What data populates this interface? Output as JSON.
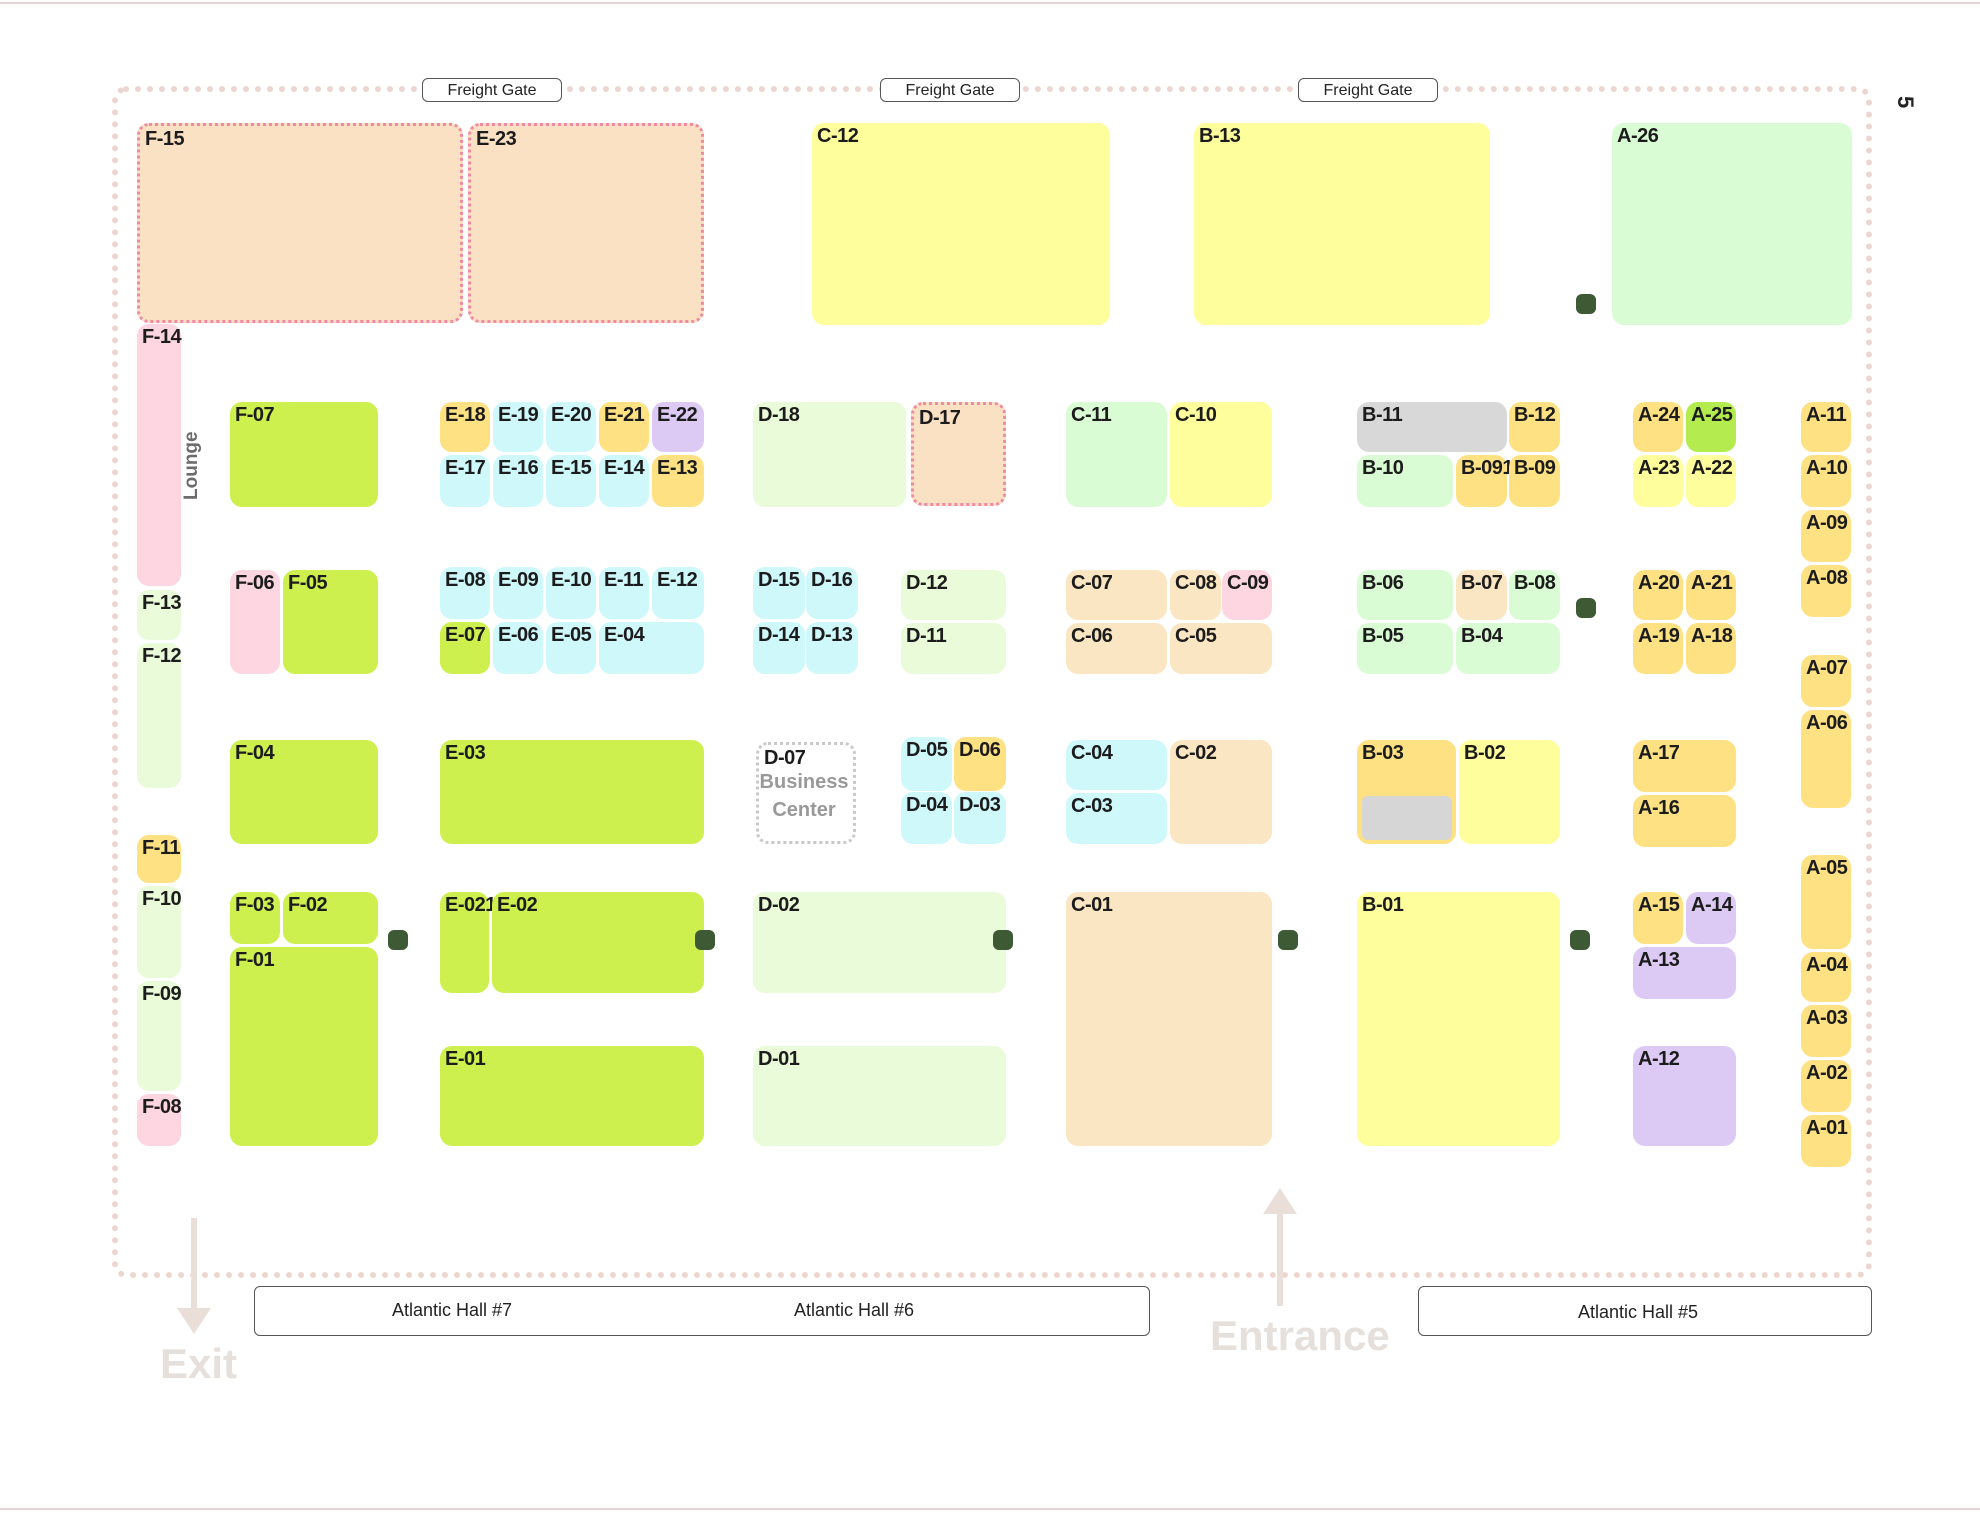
{
  "page_number": "5",
  "gates": [
    "Freight Gate",
    "Freight Gate",
    "Freight Gate"
  ],
  "halls": [
    "Atlantic Hall #7",
    "Atlantic Hall #6",
    "Atlantic Hall #5"
  ],
  "entrance_label": "Entrance",
  "exit_label": "Exit",
  "lounge_label": "Lounge",
  "business_center": [
    "Business",
    "Center"
  ],
  "colors": {
    "peach": "#fbe1c4",
    "yellow": "#feff9c",
    "mint": "#dafcd4",
    "lime": "#cdf04f",
    "orange": "#fde183",
    "cyan": "#cff8fb",
    "lavender": "#dcc9f4",
    "pink": "#fdd6e2",
    "tan": "#fae6c2",
    "gray": "#d8d8d8",
    "pale": "#e9fbd9",
    "brightgreen": "#b4eb4e"
  },
  "booths": [
    {
      "id": "F-15",
      "c": "peach"
    },
    {
      "id": "E-23",
      "c": "peach"
    },
    {
      "id": "C-12",
      "c": "yellow"
    },
    {
      "id": "B-13",
      "c": "yellow"
    },
    {
      "id": "A-26",
      "c": "mint"
    },
    {
      "id": "F-14",
      "c": "pink"
    },
    {
      "id": "F-07",
      "c": "lime"
    },
    {
      "id": "E-18",
      "c": "orange"
    },
    {
      "id": "E-19",
      "c": "cyan"
    },
    {
      "id": "E-20",
      "c": "cyan"
    },
    {
      "id": "E-21",
      "c": "orange"
    },
    {
      "id": "E-22",
      "c": "lavender"
    },
    {
      "id": "E-17",
      "c": "cyan"
    },
    {
      "id": "E-16",
      "c": "cyan"
    },
    {
      "id": "E-15",
      "c": "cyan"
    },
    {
      "id": "E-14",
      "c": "cyan"
    },
    {
      "id": "E-13",
      "c": "orange"
    },
    {
      "id": "D-18",
      "c": "pale"
    },
    {
      "id": "D-17",
      "c": "peach"
    },
    {
      "id": "C-11",
      "c": "mint"
    },
    {
      "id": "C-10",
      "c": "yellow"
    },
    {
      "id": "B-11",
      "c": "gray"
    },
    {
      "id": "B-12",
      "c": "orange"
    },
    {
      "id": "B-10",
      "c": "mint"
    },
    {
      "id": "B-091",
      "c": "orange"
    },
    {
      "id": "B-09",
      "c": "orange"
    },
    {
      "id": "A-24",
      "c": "orange"
    },
    {
      "id": "A-25",
      "c": "brightgreen"
    },
    {
      "id": "A-23",
      "c": "yellow"
    },
    {
      "id": "A-22",
      "c": "yellow"
    },
    {
      "id": "A-11",
      "c": "orange"
    },
    {
      "id": "A-10",
      "c": "orange"
    },
    {
      "id": "A-09",
      "c": "orange"
    },
    {
      "id": "A-08",
      "c": "orange"
    },
    {
      "id": "F-13",
      "c": "pale"
    },
    {
      "id": "F-12",
      "c": "pale"
    },
    {
      "id": "F-06",
      "c": "pink"
    },
    {
      "id": "F-05",
      "c": "lime"
    },
    {
      "id": "E-08",
      "c": "cyan"
    },
    {
      "id": "E-09",
      "c": "cyan"
    },
    {
      "id": "E-10",
      "c": "cyan"
    },
    {
      "id": "E-11",
      "c": "cyan"
    },
    {
      "id": "E-12",
      "c": "cyan"
    },
    {
      "id": "E-07",
      "c": "lime"
    },
    {
      "id": "E-06",
      "c": "cyan"
    },
    {
      "id": "E-05",
      "c": "cyan"
    },
    {
      "id": "E-04",
      "c": "cyan"
    },
    {
      "id": "D-15",
      "c": "cyan"
    },
    {
      "id": "D-16",
      "c": "cyan"
    },
    {
      "id": "D-14",
      "c": "cyan"
    },
    {
      "id": "D-13",
      "c": "cyan"
    },
    {
      "id": "D-12",
      "c": "pale"
    },
    {
      "id": "D-11",
      "c": "pale"
    },
    {
      "id": "C-07",
      "c": "tan"
    },
    {
      "id": "C-08",
      "c": "tan"
    },
    {
      "id": "C-09",
      "c": "pink"
    },
    {
      "id": "C-06",
      "c": "tan"
    },
    {
      "id": "C-05",
      "c": "tan"
    },
    {
      "id": "B-06",
      "c": "mint"
    },
    {
      "id": "B-07",
      "c": "tan"
    },
    {
      "id": "B-08",
      "c": "mint"
    },
    {
      "id": "B-05",
      "c": "mint"
    },
    {
      "id": "B-04",
      "c": "mint"
    },
    {
      "id": "A-20",
      "c": "orange"
    },
    {
      "id": "A-21",
      "c": "orange"
    },
    {
      "id": "A-19",
      "c": "orange"
    },
    {
      "id": "A-18",
      "c": "orange"
    },
    {
      "id": "A-07",
      "c": "orange"
    },
    {
      "id": "A-06",
      "c": "orange"
    },
    {
      "id": "F-04",
      "c": "lime"
    },
    {
      "id": "E-03",
      "c": "lime"
    },
    {
      "id": "D-07",
      "c": "white"
    },
    {
      "id": "D-05",
      "c": "cyan"
    },
    {
      "id": "D-06",
      "c": "orange"
    },
    {
      "id": "D-04",
      "c": "cyan"
    },
    {
      "id": "D-03",
      "c": "cyan"
    },
    {
      "id": "C-04",
      "c": "cyan"
    },
    {
      "id": "C-03",
      "c": "cyan"
    },
    {
      "id": "C-02",
      "c": "tan"
    },
    {
      "id": "B-03",
      "c": "orange"
    },
    {
      "id": "B-02",
      "c": "yellow"
    },
    {
      "id": "A-17",
      "c": "orange"
    },
    {
      "id": "A-16",
      "c": "orange"
    },
    {
      "id": "F-11",
      "c": "orange"
    },
    {
      "id": "F-10",
      "c": "pale"
    },
    {
      "id": "F-09",
      "c": "pale"
    },
    {
      "id": "F-08",
      "c": "pink"
    },
    {
      "id": "F-03",
      "c": "lime"
    },
    {
      "id": "F-02",
      "c": "lime"
    },
    {
      "id": "F-01",
      "c": "lime"
    },
    {
      "id": "E-021",
      "c": "lime"
    },
    {
      "id": "E-02",
      "c": "lime"
    },
    {
      "id": "E-01",
      "c": "lime"
    },
    {
      "id": "D-02",
      "c": "pale"
    },
    {
      "id": "D-01",
      "c": "pale"
    },
    {
      "id": "C-01",
      "c": "tan"
    },
    {
      "id": "B-01",
      "c": "yellow"
    },
    {
      "id": "A-15",
      "c": "orange"
    },
    {
      "id": "A-14",
      "c": "lavender"
    },
    {
      "id": "A-13",
      "c": "lavender"
    },
    {
      "id": "A-12",
      "c": "lavender"
    },
    {
      "id": "A-05",
      "c": "orange"
    },
    {
      "id": "A-04",
      "c": "orange"
    },
    {
      "id": "A-03",
      "c": "orange"
    },
    {
      "id": "A-02",
      "c": "orange"
    },
    {
      "id": "A-01",
      "c": "orange"
    }
  ]
}
